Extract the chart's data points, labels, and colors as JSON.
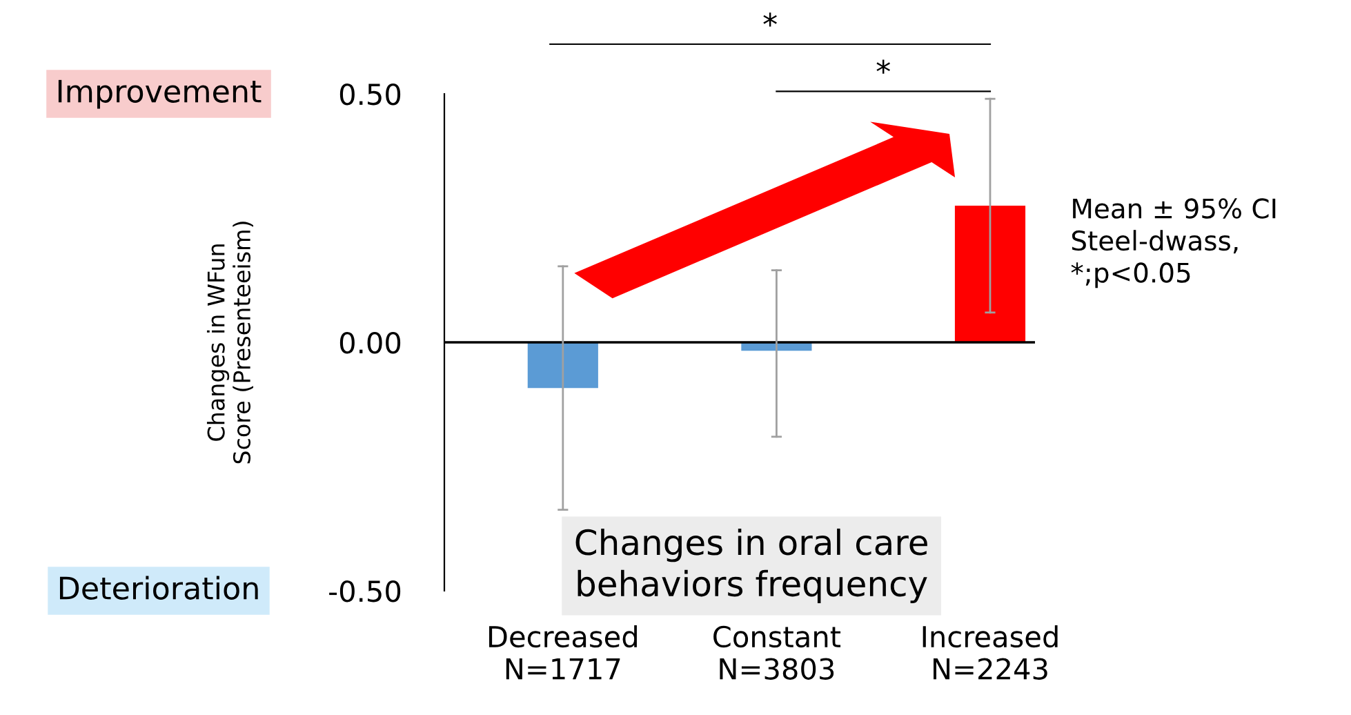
{
  "chart_data": {
    "type": "bar",
    "ylabel": "Changes in WFun\nScore (Presenteeism)",
    "xlabel": "Changes in oral care\nbehaviors frequency",
    "categories": [
      "Decreased\nN=1717",
      "Constant\nN=3803",
      "Increased\nN=2243"
    ],
    "values": [
      -0.092,
      -0.017,
      0.275
    ],
    "colors": [
      "#5b9bd5",
      "#5b9bd5",
      "#ff0000"
    ],
    "errors": [
      [
        -0.337,
        0.153
      ],
      [
        -0.19,
        0.145
      ],
      [
        0.06,
        0.49
      ]
    ],
    "ylim": [
      -0.5,
      0.5
    ],
    "yticks": [
      {
        "value": -0.5,
        "label": "-0.50"
      },
      {
        "value": 0.0,
        "label": "0.00"
      },
      {
        "value": 0.5,
        "label": "0.50"
      }
    ],
    "grid": false,
    "ref_lines": [
      {
        "axis": "y",
        "value": 0,
        "color": "#000000"
      }
    ],
    "annotations": [
      "Improvement",
      "Deterioration",
      "*",
      "*",
      "Mean ± 95% CI\nSteel-dwass,\n*;p<0.05"
    ]
  }
}
